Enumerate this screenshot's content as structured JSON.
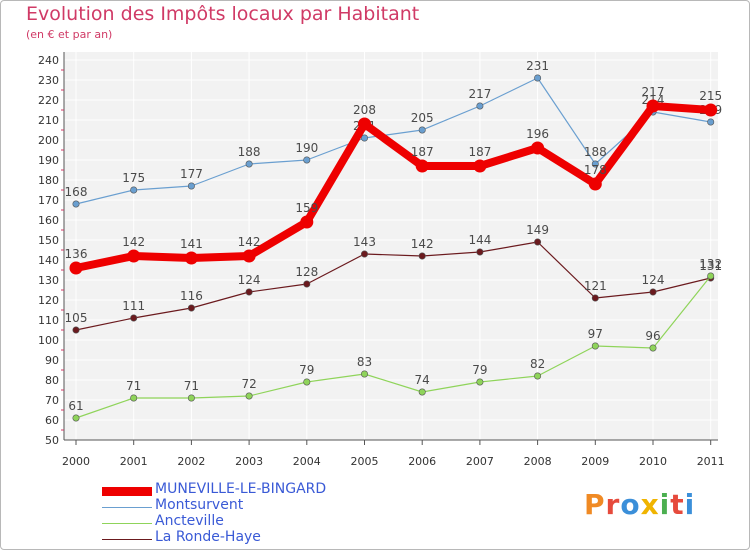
{
  "header": {
    "title": "Evolution des Impôts locaux par Habitant",
    "subtitle": "(en € et par an)"
  },
  "logo": {
    "text": "Proxiti",
    "colors": [
      "#f08a24",
      "#e64a3c",
      "#3b8fd9",
      "#f0b400",
      "#4caf50",
      "#e64a3c",
      "#3b8fd9"
    ]
  },
  "chart_data": {
    "type": "line",
    "title": "Evolution des Impôts locaux par Habitant",
    "subtitle": "(en € et par an)",
    "xlabel": "",
    "ylabel": "",
    "x": [
      "2000",
      "2001",
      "2002",
      "2003",
      "2004",
      "2005",
      "2006",
      "2007",
      "2008",
      "2009",
      "2010",
      "2011"
    ],
    "ylim": [
      50,
      240
    ],
    "ytick_step": 10,
    "grid": true,
    "legend_position": "bottom-left",
    "series": [
      {
        "name": "Montsurvent",
        "color": "#6a9fd0",
        "values": [
          168,
          175,
          177,
          188,
          190,
          201,
          205,
          217,
          231,
          188,
          214,
          209
        ],
        "labels": [
          "168",
          "175",
          "177",
          "188",
          "190",
          "201",
          "205",
          "217",
          "231",
          "188",
          "214",
          "209"
        ]
      },
      {
        "name": "La Ronde-Haye",
        "color": "#6b1a1e",
        "values": [
          105,
          111,
          116,
          124,
          128,
          143,
          142,
          144,
          149,
          121,
          124,
          131
        ],
        "labels": [
          "105",
          "111",
          "116",
          "124",
          "128",
          "143",
          "142",
          "144",
          "149",
          "121",
          "124",
          "131"
        ]
      },
      {
        "name": "Ancteville",
        "color": "#8fd45a",
        "values": [
          61,
          71,
          71,
          72,
          79,
          83,
          74,
          79,
          82,
          97,
          96,
          132
        ],
        "labels": [
          "61",
          "71",
          "71",
          "72",
          "79",
          "83",
          "74",
          "79",
          "82",
          "97",
          "96",
          "132"
        ]
      },
      {
        "name": "MUNEVILLE-LE-BINGARD",
        "color": "#ee0000",
        "values": [
          136,
          142,
          141,
          142,
          159,
          208,
          187,
          187,
          196,
          178,
          217,
          215
        ],
        "labels": [
          "136",
          "142",
          "141",
          "142",
          "159",
          "208",
          "187",
          "187",
          "196",
          "178",
          "217",
          "215"
        ]
      }
    ],
    "legend": [
      "MUNEVILLE-LE-BINGARD",
      "Montsurvent",
      "Ancteville",
      "La Ronde-Haye"
    ]
  }
}
